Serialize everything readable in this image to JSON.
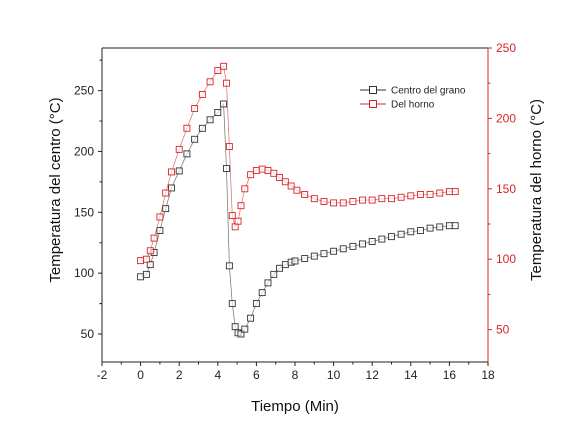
{
  "chart_data": {
    "type": "scatter",
    "xlabel": "Tiempo (Min)",
    "ylabel_left": "Temperatura del centro (°C)",
    "ylabel_right": "Temperatura del horno (°C)",
    "xlim": [
      -2,
      18
    ],
    "ylim_left": [
      27,
      285
    ],
    "ylim_right": [
      27,
      250
    ],
    "x_ticks": [
      -2,
      0,
      2,
      4,
      6,
      8,
      10,
      12,
      14,
      16,
      18
    ],
    "y_ticks_left": [
      50,
      100,
      150,
      200,
      250
    ],
    "y_ticks_right": [
      50,
      100,
      150,
      200,
      250
    ],
    "legend_position": "top-right",
    "grid": false,
    "colors": {
      "centro": "#333333",
      "horno": "#d62728",
      "right_axis": "#d62728"
    },
    "series": [
      {
        "name": "Centro del grano",
        "axis": "left",
        "x": [
          0,
          0.3,
          0.5,
          0.7,
          1.0,
          1.3,
          1.6,
          2.0,
          2.4,
          2.8,
          3.2,
          3.6,
          4.0,
          4.3,
          4.45,
          4.6,
          4.75,
          4.9,
          5.05,
          5.2,
          5.4,
          5.7,
          6.0,
          6.3,
          6.6,
          6.9,
          7.2,
          7.5,
          7.8,
          8.0,
          8.5,
          9.0,
          9.5,
          10.0,
          10.5,
          11.0,
          11.5,
          12.0,
          12.5,
          13.0,
          13.5,
          14.0,
          14.5,
          15.0,
          15.5,
          16.0,
          16.3
        ],
        "y": [
          97,
          99,
          107,
          117,
          135,
          153,
          170,
          184,
          198,
          210,
          219,
          226,
          232,
          239,
          186,
          106,
          75,
          56,
          51,
          50,
          54,
          63,
          75,
          84,
          92,
          99,
          104,
          107,
          109,
          110,
          112,
          114,
          116,
          118,
          120,
          122,
          124,
          126,
          128,
          130,
          132,
          134,
          135,
          137,
          138,
          139,
          139
        ]
      },
      {
        "name": "Del horno",
        "axis": "right",
        "x": [
          0,
          0.3,
          0.5,
          0.7,
          1.0,
          1.3,
          1.6,
          2.0,
          2.4,
          2.8,
          3.2,
          3.6,
          4.0,
          4.3,
          4.45,
          4.6,
          4.75,
          4.9,
          5.05,
          5.2,
          5.4,
          5.7,
          6.0,
          6.3,
          6.6,
          6.9,
          7.2,
          7.5,
          7.8,
          8.1,
          8.5,
          9.0,
          9.5,
          10.0,
          10.5,
          11.0,
          11.5,
          12.0,
          12.5,
          13.0,
          13.5,
          14.0,
          14.5,
          15.0,
          15.5,
          16.0,
          16.3
        ],
        "y": [
          99,
          100,
          106,
          115,
          130,
          147,
          162,
          178,
          193,
          207,
          217,
          226,
          234,
          237,
          225,
          180,
          131,
          123,
          127,
          138,
          150,
          160,
          163,
          164,
          163,
          161,
          158,
          155,
          152,
          149,
          146,
          143,
          141,
          140,
          140,
          141,
          142,
          142,
          143,
          143,
          144,
          145,
          146,
          146,
          147,
          148,
          148
        ]
      }
    ]
  }
}
